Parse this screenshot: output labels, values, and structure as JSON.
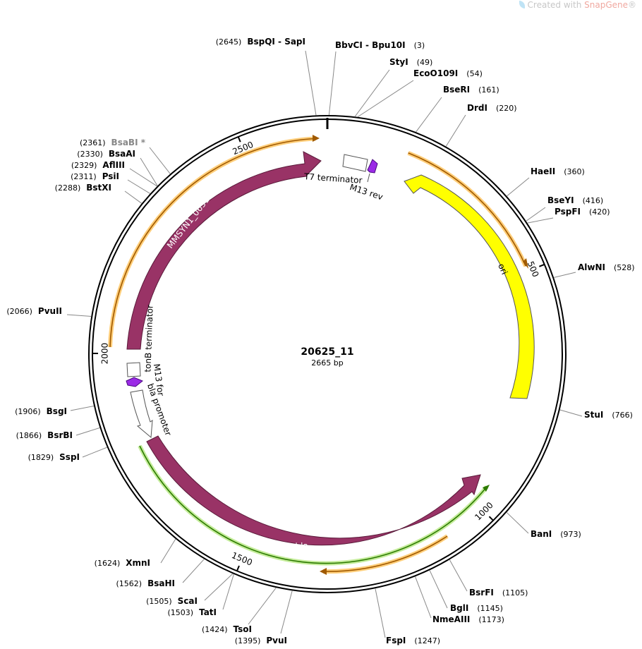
{
  "watermark": {
    "prefix": "Created with ",
    "brand": "SnapGene",
    "suffix": "®"
  },
  "plasmid": {
    "name": "20625_11",
    "length_label": "2665 bp",
    "length": 2665
  },
  "ticks": [
    {
      "pos": 500,
      "label": "500"
    },
    {
      "pos": 1000,
      "label": "1000"
    },
    {
      "pos": 1500,
      "label": "1500"
    },
    {
      "pos": 2000,
      "label": "2000"
    },
    {
      "pos": 2500,
      "label": "2500"
    }
  ],
  "sites": [
    {
      "id": "bspqi-sapi",
      "name": "BspQI - SapI",
      "pos_label": "(2645)",
      "pos": 2645,
      "side": "left",
      "grey": false
    },
    {
      "id": "bbvci-bpu10i",
      "name": "BbvCI - Bpu10I",
      "pos_label": "(3)",
      "pos": 3,
      "side": "right",
      "grey": false
    },
    {
      "id": "styi",
      "name": "StyI",
      "pos_label": "(49)",
      "pos": 49,
      "side": "right",
      "grey": false
    },
    {
      "id": "ecoo109i",
      "name": "EcoO109I",
      "pos_label": "(54)",
      "pos": 54,
      "side": "right",
      "grey": false
    },
    {
      "id": "bseri",
      "name": "BseRI",
      "pos_label": "(161)",
      "pos": 161,
      "side": "right",
      "grey": false
    },
    {
      "id": "drdi",
      "name": "DrdI",
      "pos_label": "(220)",
      "pos": 220,
      "side": "right",
      "grey": false
    },
    {
      "id": "haeii",
      "name": "HaeII",
      "pos_label": "(360)",
      "pos": 360,
      "side": "right",
      "grey": false
    },
    {
      "id": "bseyi",
      "name": "BseYI",
      "pos_label": "(416)",
      "pos": 416,
      "side": "right",
      "grey": false
    },
    {
      "id": "pspfi",
      "name": "PspFI",
      "pos_label": "(420)",
      "pos": 420,
      "side": "right",
      "grey": false
    },
    {
      "id": "alwni",
      "name": "AlwNI",
      "pos_label": "(528)",
      "pos": 528,
      "side": "right",
      "grey": false
    },
    {
      "id": "stui",
      "name": "StuI",
      "pos_label": "(766)",
      "pos": 766,
      "side": "right",
      "grey": false
    },
    {
      "id": "bani",
      "name": "BanI",
      "pos_label": "(973)",
      "pos": 973,
      "side": "right",
      "grey": false
    },
    {
      "id": "bsrfi",
      "name": "BsrFI",
      "pos_label": "(1105)",
      "pos": 1105,
      "side": "right",
      "grey": false
    },
    {
      "id": "bgli",
      "name": "BglI",
      "pos_label": "(1145)",
      "pos": 1145,
      "side": "right",
      "grey": false
    },
    {
      "id": "nmeaiii",
      "name": "NmeAIII",
      "pos_label": "(1173)",
      "pos": 1173,
      "side": "right",
      "grey": false
    },
    {
      "id": "fspi",
      "name": "FspI",
      "pos_label": "(1247)",
      "pos": 1247,
      "side": "right",
      "grey": false
    },
    {
      "id": "pvui",
      "name": "PvuI",
      "pos_label": "(1395)",
      "pos": 1395,
      "side": "left",
      "grey": false
    },
    {
      "id": "tsoi",
      "name": "TsoI",
      "pos_label": "(1424)",
      "pos": 1424,
      "side": "left",
      "grey": false
    },
    {
      "id": "tati",
      "name": "TatI",
      "pos_label": "(1503)",
      "pos": 1503,
      "side": "left",
      "grey": false
    },
    {
      "id": "scai",
      "name": "ScaI",
      "pos_label": "(1505)",
      "pos": 1505,
      "side": "left",
      "grey": false
    },
    {
      "id": "bsahi",
      "name": "BsaHI",
      "pos_label": "(1562)",
      "pos": 1562,
      "side": "left",
      "grey": false
    },
    {
      "id": "xmni",
      "name": "XmnI",
      "pos_label": "(1624)",
      "pos": 1624,
      "side": "left",
      "grey": false
    },
    {
      "id": "sspi",
      "name": "SspI",
      "pos_label": "(1829)",
      "pos": 1829,
      "side": "left",
      "grey": false
    },
    {
      "id": "bsrbi",
      "name": "BsrBI",
      "pos_label": "(1866)",
      "pos": 1866,
      "side": "left",
      "grey": false
    },
    {
      "id": "bsgi",
      "name": "BsgI",
      "pos_label": "(1906)",
      "pos": 1906,
      "side": "left",
      "grey": false
    },
    {
      "id": "pvuii",
      "name": "PvuII",
      "pos_label": "(2066)",
      "pos": 2066,
      "side": "left",
      "grey": false
    },
    {
      "id": "bstxi",
      "name": "BstXI",
      "pos_label": "(2288)",
      "pos": 2288,
      "side": "left",
      "grey": false
    },
    {
      "id": "psii",
      "name": "PsiI",
      "pos_label": "(2311)",
      "pos": 2311,
      "side": "left",
      "grey": false
    },
    {
      "id": "afliii",
      "name": "AflIII",
      "pos_label": "(2329)",
      "pos": 2329,
      "side": "left",
      "grey": false
    },
    {
      "id": "bsaai",
      "name": "BsaAI",
      "pos_label": "(2330)",
      "pos": 2330,
      "side": "left",
      "grey": false
    },
    {
      "id": "bsabi",
      "name": "BsaBI *",
      "pos_label": "(2361)",
      "pos": 2361,
      "side": "left",
      "grey": true
    }
  ],
  "features": [
    {
      "id": "t7-terminator",
      "label": "T7 terminator",
      "kind": "terminator",
      "start": 25,
      "end": 70
    },
    {
      "id": "m13-rev",
      "label": "M13 rev",
      "kind": "primer",
      "start": 72,
      "end": 88,
      "color": "#9b2be6"
    },
    {
      "id": "ori",
      "label": "ori",
      "kind": "rep_origin",
      "start": 190,
      "end": 780,
      "color": "#ffff00"
    },
    {
      "id": "bla",
      "label": "bla",
      "kind": "cds",
      "start": 1030,
      "end": 1700,
      "color": "#993366"
    },
    {
      "id": "bla-promoter",
      "label": "bla promoter",
      "kind": "promoter",
      "start": 1770,
      "end": 1880
    },
    {
      "id": "m13-for",
      "label": "M13 for",
      "kind": "primer",
      "start": 1905,
      "end": 1922,
      "color": "#9b2be6"
    },
    {
      "id": "tonb-terminator",
      "label": "tonB terminator",
      "kind": "terminator",
      "start": 1928,
      "end": 1960
    },
    {
      "id": "mmsyn1-0651",
      "label": "MMSYN1_0651",
      "kind": "cds",
      "start": 1985,
      "end": 2640,
      "color": "#993366"
    }
  ]
}
